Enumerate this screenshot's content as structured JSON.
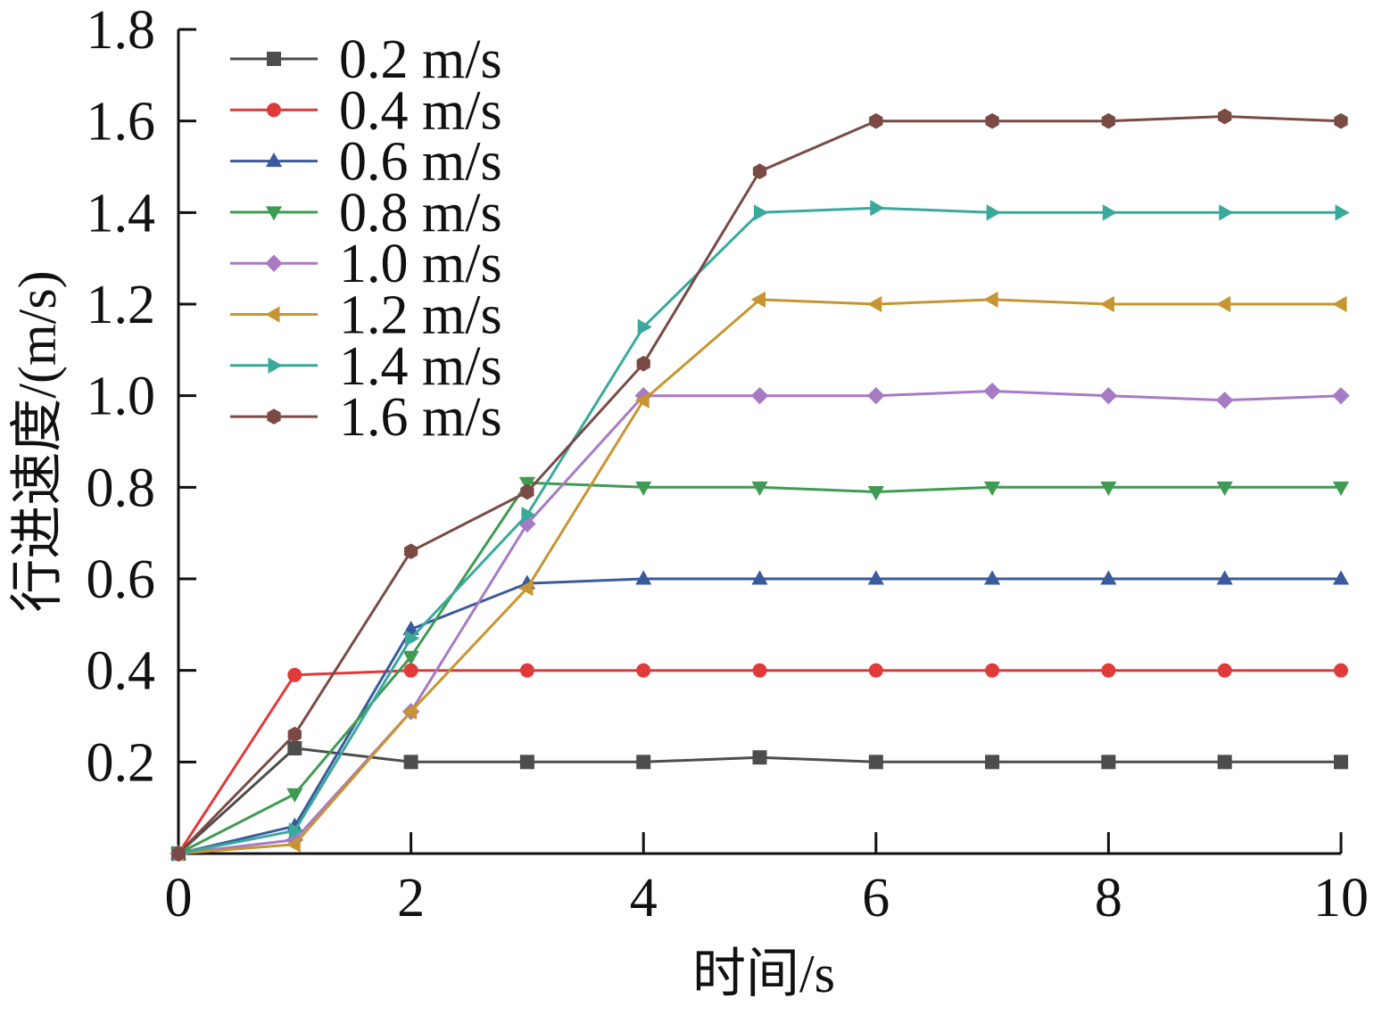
{
  "chart_data": {
    "type": "line",
    "title": "",
    "xlabel": "时间/s",
    "ylabel": "行进速度/(m/s)",
    "xlim": [
      0,
      10
    ],
    "ylim": [
      0,
      1.8
    ],
    "x_ticks": [
      "0",
      "2",
      "4",
      "6",
      "8",
      "10"
    ],
    "y_ticks": [
      "0.2",
      "0.4",
      "0.6",
      "0.8",
      "1.0",
      "1.2",
      "1.4",
      "1.6",
      "1.8"
    ],
    "grid": false,
    "legend_position": "top-left",
    "x": [
      0,
      1,
      2,
      3,
      4,
      5,
      6,
      7,
      8,
      9,
      10
    ],
    "series": [
      {
        "name": "0.2 m/s",
        "color": "#4d4d4d",
        "marker": "square",
        "values": [
          0,
          0.23,
          0.2,
          0.2,
          0.2,
          0.21,
          0.2,
          0.2,
          0.2,
          0.2,
          0.2
        ]
      },
      {
        "name": "0.4 m/s",
        "color": "#e03a3a",
        "marker": "circle",
        "values": [
          0,
          0.39,
          0.4,
          0.4,
          0.4,
          0.4,
          0.4,
          0.4,
          0.4,
          0.4,
          0.4
        ]
      },
      {
        "name": "0.6 m/s",
        "color": "#3a5a9e",
        "marker": "triangle-up",
        "values": [
          0,
          0.06,
          0.49,
          0.59,
          0.6,
          0.6,
          0.6,
          0.6,
          0.6,
          0.6,
          0.6
        ]
      },
      {
        "name": "0.8 m/s",
        "color": "#3f9a52",
        "marker": "triangle-down",
        "values": [
          0,
          0.13,
          0.43,
          0.81,
          0.8,
          0.8,
          0.79,
          0.8,
          0.8,
          0.8,
          0.8
        ]
      },
      {
        "name": "1.0 m/s",
        "color": "#a77ac4",
        "marker": "diamond",
        "values": [
          0,
          0.03,
          0.31,
          0.72,
          1.0,
          1.0,
          1.0,
          1.01,
          1.0,
          0.99,
          1.0
        ]
      },
      {
        "name": "1.2 m/s",
        "color": "#c79531",
        "marker": "triangle-left",
        "values": [
          0,
          0.02,
          0.31,
          0.58,
          0.99,
          1.21,
          1.2,
          1.21,
          1.2,
          1.2,
          1.2
        ]
      },
      {
        "name": "1.4 m/s",
        "color": "#3aa99c",
        "marker": "triangle-right",
        "values": [
          0,
          0.05,
          0.47,
          0.74,
          1.15,
          1.4,
          1.41,
          1.4,
          1.4,
          1.4,
          1.4
        ]
      },
      {
        "name": "1.6 m/s",
        "color": "#7a4a44",
        "marker": "hexagon",
        "values": [
          0,
          0.26,
          0.66,
          0.79,
          1.07,
          1.49,
          1.6,
          1.6,
          1.6,
          1.61,
          1.6
        ]
      }
    ]
  }
}
